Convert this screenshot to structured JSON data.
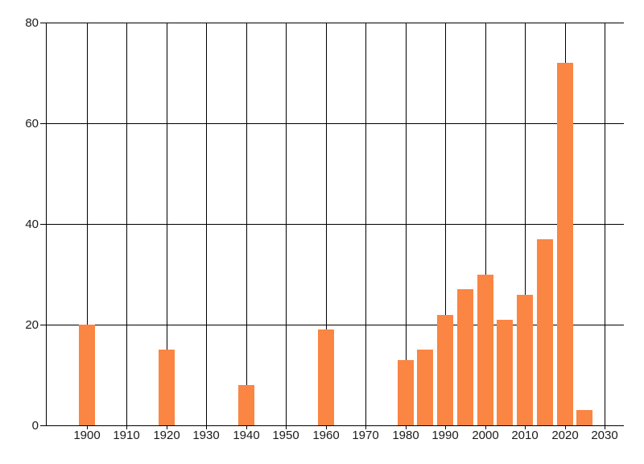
{
  "chart_data": {
    "type": "bar",
    "title": "",
    "xlabel": "",
    "ylabel": "",
    "x": [
      1900,
      1920,
      1940,
      1960,
      1980,
      1985,
      1990,
      1995,
      2000,
      2005,
      2010,
      2015,
      2020,
      2025
    ],
    "values": [
      20,
      15,
      8,
      19,
      13,
      15,
      22,
      27,
      30,
      21,
      26,
      37,
      72,
      3
    ],
    "x_tick_labels": [
      "1900",
      "1910",
      "1920",
      "1930",
      "1940",
      "1950",
      "1960",
      "1970",
      "1980",
      "1990",
      "2000",
      "2010",
      "2020",
      "2030"
    ],
    "x_tick_years": [
      1900,
      1910,
      1920,
      1930,
      1940,
      1950,
      1960,
      1970,
      1980,
      1990,
      2000,
      2010,
      2020,
      2030
    ],
    "y_tick_labels": [
      "0",
      "20",
      "40",
      "60",
      "80"
    ],
    "y_tick_values": [
      0,
      20,
      40,
      60,
      80
    ],
    "ylim": [
      0,
      80
    ],
    "grid": true,
    "legend": false,
    "colors": {
      "bar": "#FB8543",
      "grid": "#000000",
      "axis": "#000000",
      "text": "#1b1b1b",
      "background": "#ffffff"
    }
  }
}
